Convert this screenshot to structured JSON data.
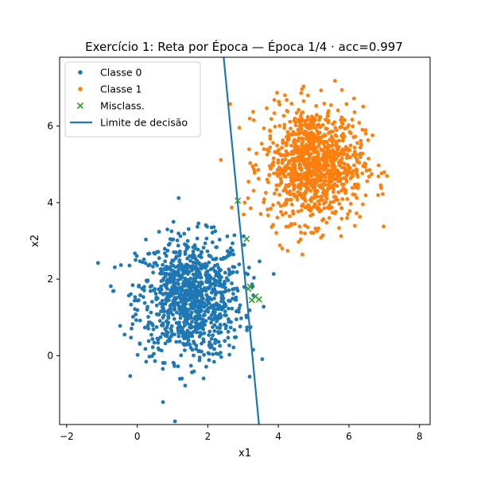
{
  "chart_data": {
    "type": "scatter",
    "title": "Exercício 1: Reta por Época — Época 1/4 · acc=0.997",
    "xlabel": "x1",
    "ylabel": "x2",
    "xlim": [
      -2.2,
      8.3
    ],
    "ylim": [
      -1.8,
      7.8
    ],
    "xticks": [
      -2,
      0,
      2,
      4,
      6,
      8
    ],
    "yticks": [
      0,
      2,
      4,
      6
    ],
    "grid": false,
    "legend_position": "upper-left",
    "legend": [
      {
        "label": "Classe 0",
        "kind": "dot",
        "color": "#1f77b4"
      },
      {
        "label": "Classe 1",
        "kind": "dot",
        "color": "#ff7f0e"
      },
      {
        "label": "Misclass.",
        "kind": "cross",
        "color": "#2ca02c"
      },
      {
        "label": "Limite de decisão",
        "kind": "line",
        "color": "#1f77b4"
      }
    ],
    "series": [
      {
        "name": "Classe 0",
        "color": "#1f77b4",
        "distribution": {
          "kind": "gaussian-cloud",
          "center": [
            1.5,
            1.5
          ],
          "std": [
            0.75,
            0.8
          ],
          "count": 1000
        }
      },
      {
        "name": "Classe 1",
        "color": "#ff7f0e",
        "distribution": {
          "kind": "gaussian-cloud",
          "center": [
            5.0,
            5.0
          ],
          "std": [
            0.7,
            0.75
          ],
          "count": 1000
        }
      },
      {
        "name": "Misclass.",
        "color": "#2ca02c",
        "points": [
          [
            2.85,
            4.05
          ],
          [
            3.1,
            3.05
          ],
          [
            3.2,
            1.8
          ],
          [
            3.15,
            1.75
          ],
          [
            3.25,
            1.45
          ],
          [
            3.35,
            1.55
          ],
          [
            3.45,
            1.47
          ]
        ]
      }
    ],
    "decision_boundary": {
      "name": "Limite de decisão",
      "color": "#1f77b4",
      "points": [
        [
          2.45,
          7.8
        ],
        [
          3.45,
          -1.8
        ]
      ]
    }
  }
}
